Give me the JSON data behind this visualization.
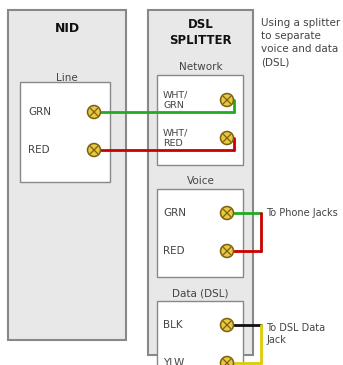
{
  "background_color": "#e8e8e8",
  "white_background": "#ffffff",
  "title_text": "Using a splitter\nto separate\nvoice and data\n(DSL)",
  "nid_label": "NID",
  "splitter_label": "DSL\nSPLITTER",
  "line_label": "Line",
  "network_label": "Network",
  "voice_label": "Voice",
  "data_label": "Data (DSL)",
  "terminal_color": "#e8c840",
  "terminal_edge": "#7a6010",
  "wire_green": "#22aa22",
  "wire_red": "#cc0000",
  "wire_black": "#111111",
  "wire_yellow": "#ddcc00",
  "to_phone_label": "To Phone Jacks",
  "to_dsl_label": "To DSL Data\nJack",
  "box_edge_color": "#888888",
  "text_color": "#444444",
  "bold_color": "#111111",
  "fig_w": 3.43,
  "fig_h": 3.65,
  "dpi": 100
}
